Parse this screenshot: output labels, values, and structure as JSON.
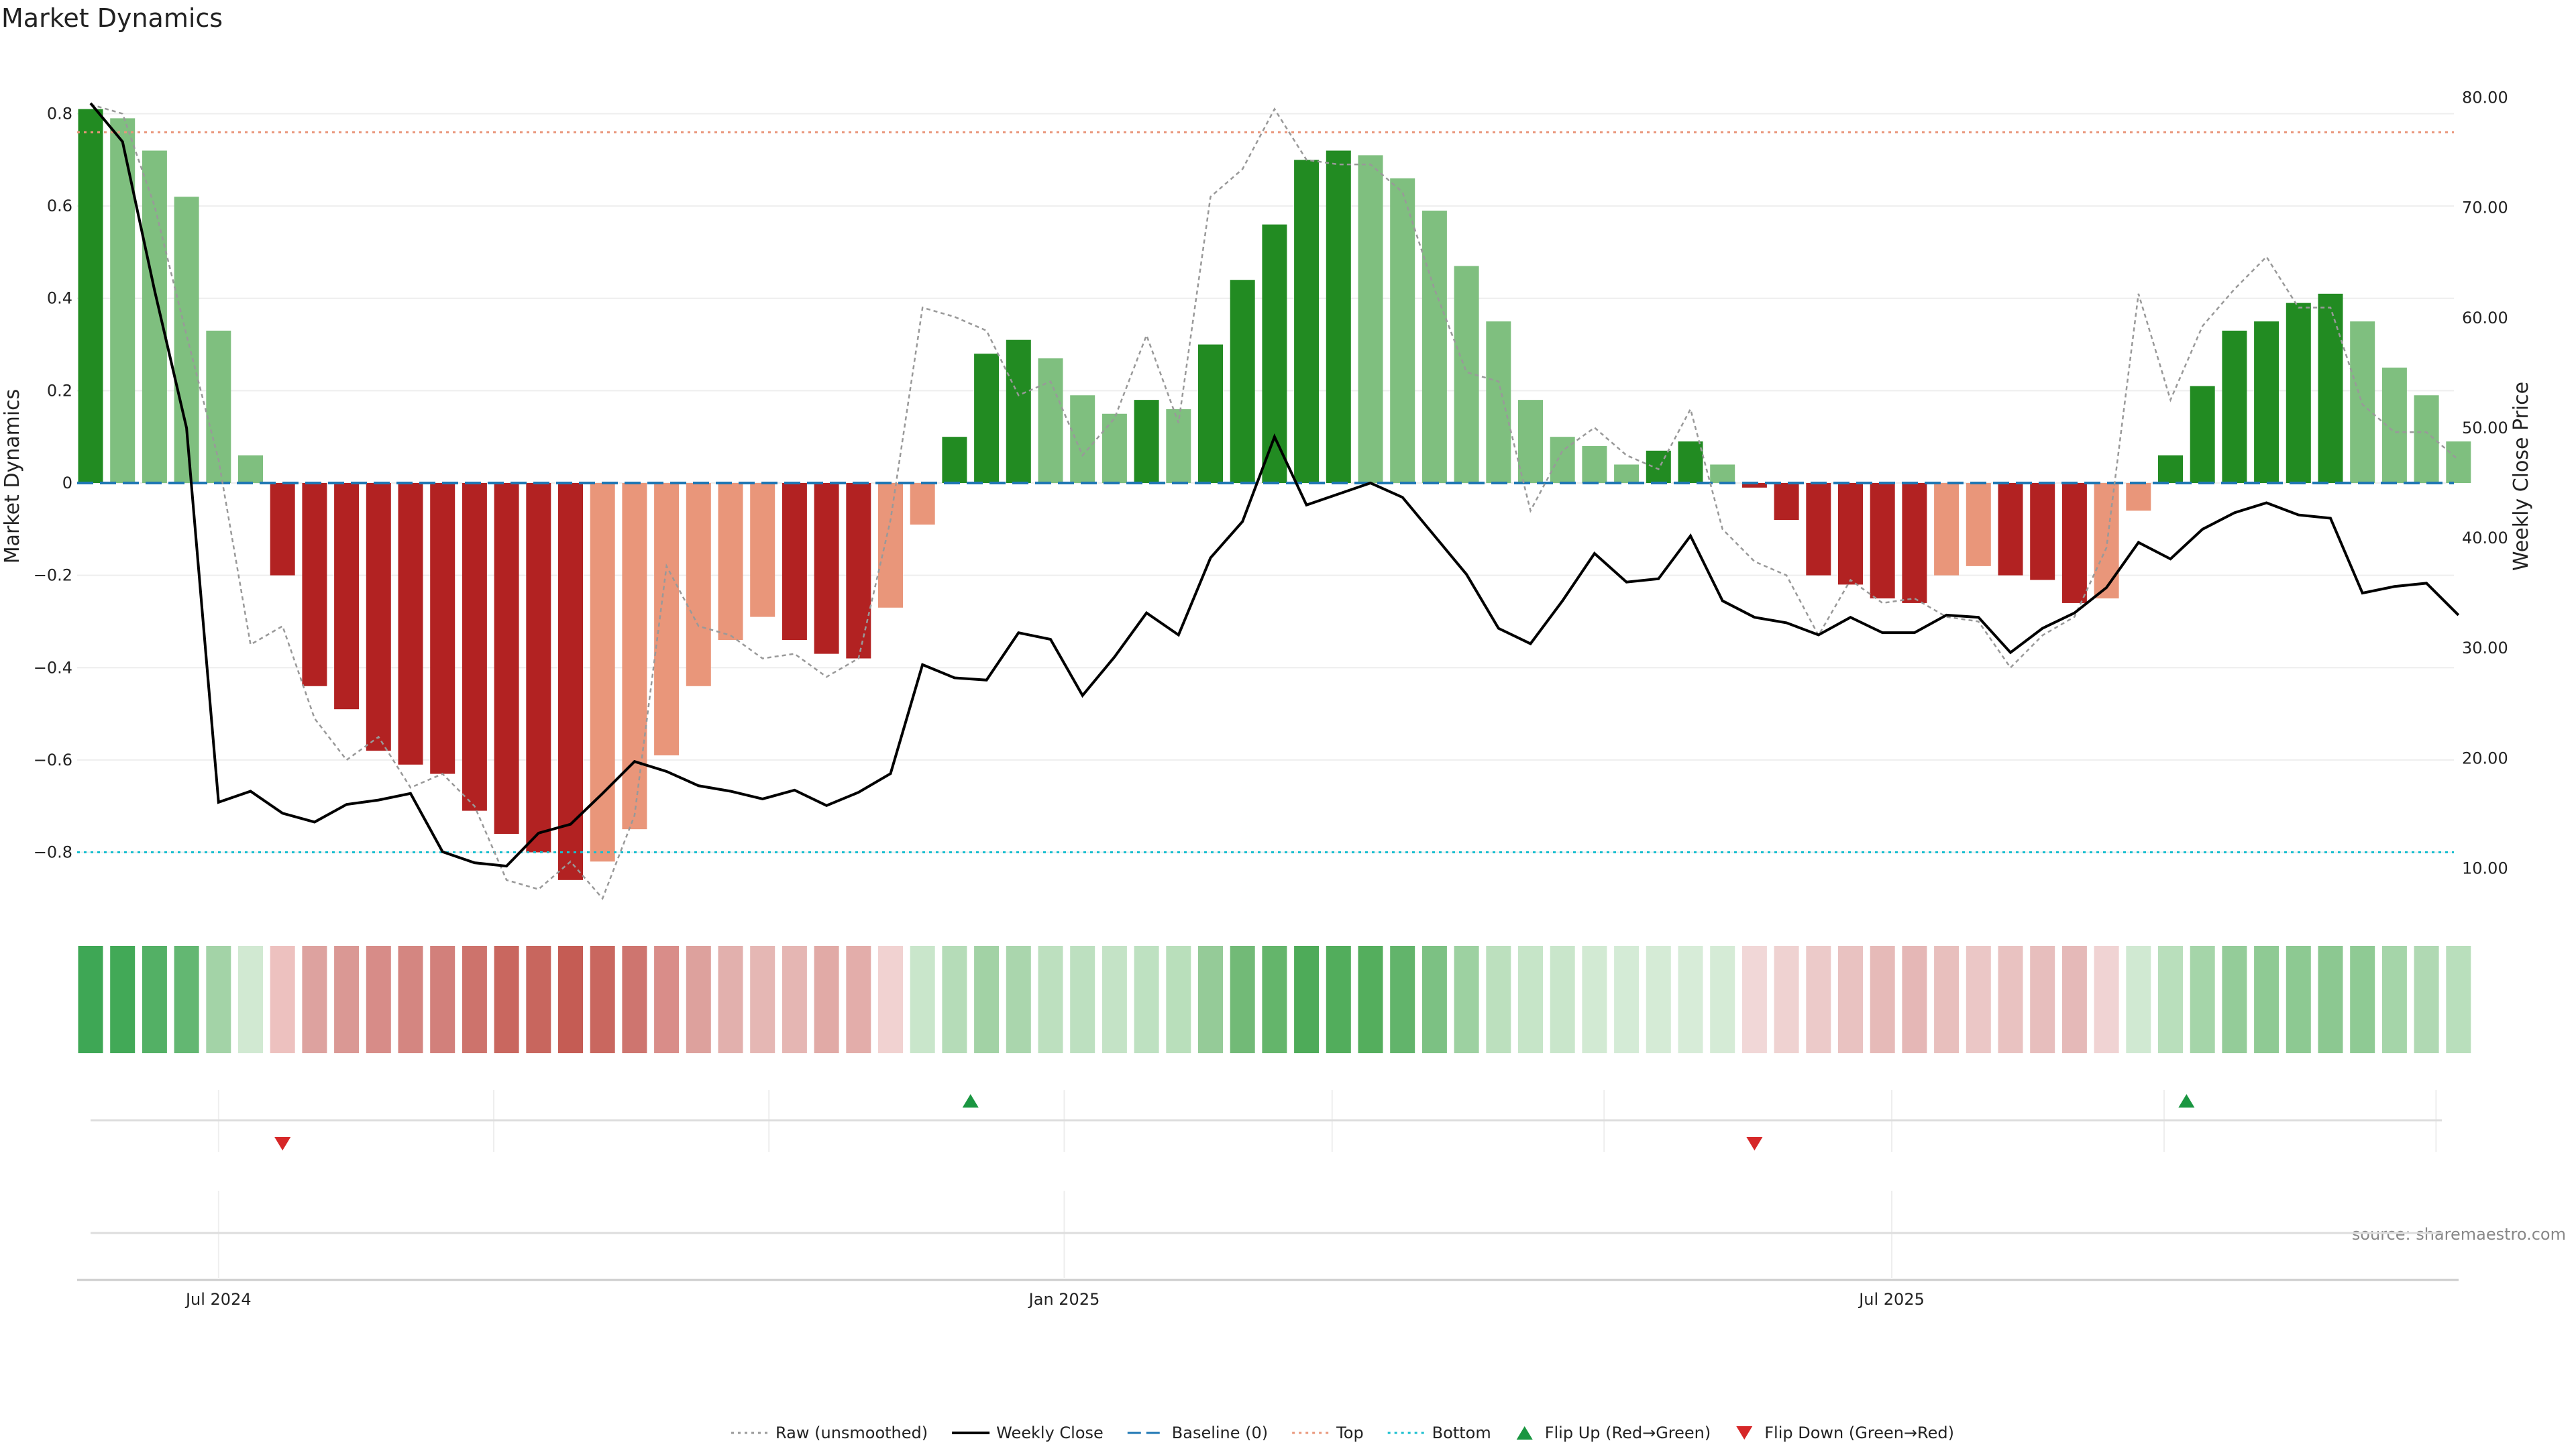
{
  "chart_data": {
    "type": "bar",
    "title": "Market Dynamics",
    "ylabel": "Market Dynamics",
    "y2label": "Weekly Close Price",
    "source_text": "source: sharemaestro.com",
    "ylim": [
      -0.93,
      0.93
    ],
    "y2lim": [
      6.0,
      84.0
    ],
    "yticks": [
      {
        "v": 0.8,
        "l": "0.8"
      },
      {
        "v": 0.6,
        "l": "0.6"
      },
      {
        "v": 0.4,
        "l": "0.4"
      },
      {
        "v": 0.2,
        "l": "0.2"
      },
      {
        "v": 0,
        "l": "0"
      },
      {
        "v": -0.2,
        "l": "−0.2"
      },
      {
        "v": -0.4,
        "l": "−0.4"
      },
      {
        "v": -0.6,
        "l": "−0.6"
      },
      {
        "v": -0.8,
        "l": "−0.8"
      }
    ],
    "y2ticks": [
      {
        "v": 80,
        "l": "80.00"
      },
      {
        "v": 70,
        "l": "70.00"
      },
      {
        "v": 60,
        "l": "60.00"
      },
      {
        "v": 50,
        "l": "50.00"
      },
      {
        "v": 40,
        "l": "40.00"
      },
      {
        "v": 30,
        "l": "30.00"
      },
      {
        "v": 20,
        "l": "20.00"
      },
      {
        "v": 10,
        "l": "10.00"
      }
    ],
    "xticks": [
      {
        "i": 4,
        "l": "Jul 2024"
      },
      {
        "i": 30.43,
        "l": "Jan 2025"
      },
      {
        "i": 56.29,
        "l": "Jul 2025"
      }
    ],
    "top_level": 0.76,
    "bottom_level": -0.8,
    "colors": {
      "pos_strong": "#228b22",
      "pos_weak": "#7fbf7f",
      "neg_strong": "#b22222",
      "neg_weak": "#e9967a",
      "close_line": "#000000",
      "raw_line": "#999999",
      "baseline": "#1f77b4",
      "top": "#e9967a",
      "bottom": "#17becf",
      "flip_up": "#1a9641",
      "flip_down": "#d62728"
    },
    "series": [
      {
        "name": "Market Dynamics",
        "kind": "bar",
        "values": [
          0.81,
          0.79,
          0.72,
          0.62,
          0.33,
          0.06,
          -0.2,
          -0.44,
          -0.49,
          -0.58,
          -0.61,
          -0.63,
          -0.71,
          -0.76,
          -0.8,
          -0.86,
          -0.82,
          -0.75,
          -0.59,
          -0.44,
          -0.34,
          -0.29,
          -0.34,
          -0.37,
          -0.38,
          -0.27,
          -0.09,
          0.1,
          0.28,
          0.31,
          0.27,
          0.19,
          0.15,
          0.18,
          0.16,
          0.3,
          0.44,
          0.56,
          0.7,
          0.72,
          0.71,
          0.66,
          0.59,
          0.47,
          0.35,
          0.18,
          0.1,
          0.08,
          0.04,
          0.07,
          0.09,
          0.04,
          -0.01,
          -0.08,
          -0.2,
          -0.22,
          -0.25,
          -0.26,
          -0.2,
          -0.18,
          -0.2,
          -0.21,
          -0.26,
          -0.25,
          -0.06,
          0.06,
          0.21,
          0.33,
          0.35,
          0.39,
          0.41,
          0.35,
          0.25,
          0.19,
          0.09
        ],
        "strong": [
          1,
          0,
          0,
          0,
          0,
          0,
          1,
          1,
          1,
          1,
          1,
          1,
          1,
          1,
          1,
          1,
          0,
          0,
          0,
          0,
          0,
          0,
          1,
          1,
          1,
          0,
          0,
          1,
          1,
          1,
          0,
          0,
          0,
          1,
          0,
          1,
          1,
          1,
          1,
          1,
          0,
          0,
          0,
          0,
          0,
          0,
          0,
          0,
          0,
          1,
          1,
          0,
          1,
          1,
          1,
          1,
          1,
          1,
          0,
          0,
          1,
          1,
          1,
          0,
          0,
          1,
          1,
          1,
          1,
          1,
          1,
          0,
          0,
          0,
          0
        ]
      },
      {
        "name": "Raw (unsmoothed)",
        "kind": "line",
        "values": [
          0.82,
          0.8,
          0.6,
          0.32,
          0.05,
          -0.35,
          -0.31,
          -0.51,
          -0.6,
          -0.55,
          -0.66,
          -0.63,
          -0.7,
          -0.86,
          -0.88,
          -0.82,
          -0.9,
          -0.72,
          -0.18,
          -0.31,
          -0.33,
          -0.38,
          -0.37,
          -0.42,
          -0.38,
          -0.08,
          0.38,
          0.36,
          0.33,
          0.19,
          0.22,
          0.06,
          0.14,
          0.32,
          0.13,
          0.62,
          0.68,
          0.81,
          0.7,
          0.69,
          0.69,
          0.63,
          0.42,
          0.24,
          0.22,
          -0.06,
          0.07,
          0.12,
          0.06,
          0.03,
          0.16,
          -0.1,
          -0.17,
          -0.2,
          -0.33,
          -0.21,
          -0.26,
          -0.25,
          -0.29,
          -0.3,
          -0.4,
          -0.33,
          -0.29,
          -0.14,
          0.41,
          0.18,
          0.34,
          0.42,
          0.49,
          0.38,
          0.38,
          0.17,
          0.11,
          0.11,
          0.05
        ]
      },
      {
        "name": "Weekly Close",
        "kind": "line",
        "axis": "right",
        "values": [
          79.5,
          76.0,
          62.5,
          50.0,
          16.0,
          17.0,
          15.0,
          14.2,
          15.8,
          16.2,
          16.8,
          11.5,
          10.5,
          10.2,
          13.2,
          14.0,
          16.8,
          19.7,
          18.8,
          17.5,
          17.0,
          16.3,
          17.1,
          15.7,
          16.9,
          18.6,
          28.5,
          27.3,
          27.1,
          31.4,
          30.8,
          25.7,
          29.2,
          33.2,
          31.2,
          38.2,
          41.5,
          49.2,
          43.0,
          44.0,
          45.0,
          43.7,
          40.2,
          36.7,
          31.8,
          30.4,
          34.3,
          38.6,
          36.0,
          36.3,
          40.2,
          34.3,
          32.8,
          32.3,
          31.2,
          32.8,
          31.4,
          31.4,
          33.0,
          32.8,
          29.6,
          31.8,
          33.2,
          35.5,
          39.6,
          38.1,
          40.8,
          42.3,
          43.2,
          42.1,
          41.8,
          35.0,
          35.6,
          35.9,
          33.0
        ]
      }
    ],
    "heat_colors": [
      "#3ea755",
      "#42a957",
      "#53b065",
      "#63b772",
      "#a3d3a7",
      "#d1e9d2",
      "#edc1bf",
      "#dda29f",
      "#da9894",
      "#d78c88",
      "#d48681",
      "#d2807b",
      "#cd736c",
      "#c9675f",
      "#c8665e",
      "#c55c54",
      "#c9675f",
      "#ce756f",
      "#d98d89",
      "#dda19d",
      "#e2b0ad",
      "#e5b7b4",
      "#e5b6b3",
      "#e1aaa6",
      "#e3adaa",
      "#f1d2d1",
      "#c9e6cb",
      "#b5dcb8",
      "#a2d2a5",
      "#aad6ad",
      "#bde0bf",
      "#bde0c0",
      "#c4e3c6",
      "#bee1c1",
      "#b9dfbb",
      "#95cb98",
      "#72ba77",
      "#64b56b",
      "#4eab59",
      "#52ad5c",
      "#54ae5d",
      "#62b46b",
      "#7cc183",
      "#9dd1a1",
      "#bce0be",
      "#c6e5c8",
      "#c9e6cb",
      "#d2ead3",
      "#d4ebd6",
      "#d5ebd6",
      "#d7ecd8",
      "#d5ebd6",
      "#f1d7d7",
      "#efd2d1",
      "#eccac9",
      "#e9c2c1",
      "#e6bab8",
      "#e5b7b6",
      "#e8bfbd",
      "#ebc7c6",
      "#e9c2c1",
      "#e7bebd",
      "#e5b9b8",
      "#f0d3d3",
      "#d0e9d2",
      "#b9dfbc",
      "#a5d5a9",
      "#94cc99",
      "#8fca94",
      "#8dc992",
      "#8cc891",
      "#8fca94",
      "#a5d5a9",
      "#b0d9b3",
      "#b9dfbc"
    ],
    "flips": [
      {
        "type": "up",
        "index": 27.5
      },
      {
        "type": "up",
        "index": 65.5
      },
      {
        "type": "down",
        "index": 6
      },
      {
        "type": "down",
        "index": 52
      }
    ],
    "legend": [
      {
        "label": "Raw (unsmoothed)",
        "kind": "line",
        "style": "dot",
        "color": "#999999"
      },
      {
        "label": "Weekly Close",
        "kind": "line",
        "style": "solid",
        "color": "#000000"
      },
      {
        "label": "Baseline (0)",
        "kind": "line",
        "style": "dash",
        "color": "#1f77b4"
      },
      {
        "label": "Top",
        "kind": "line",
        "style": "dot",
        "color": "#e9967a"
      },
      {
        "label": "Bottom",
        "kind": "line",
        "style": "dot",
        "color": "#17becf"
      },
      {
        "label": "Flip Up (Red→Green)",
        "kind": "marker-up",
        "color": "#1a9641"
      },
      {
        "label": "Flip Down (Green→Red)",
        "kind": "marker-down",
        "color": "#d62728"
      }
    ]
  }
}
